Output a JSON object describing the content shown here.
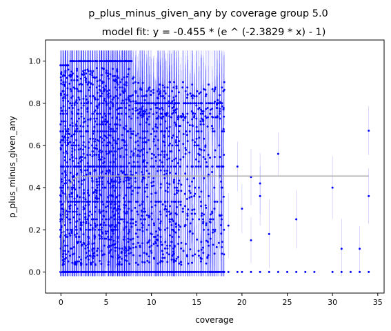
{
  "chart_data": {
    "type": "scatter",
    "title": "p_plus_minus_given_any by coverage group 5.0",
    "subtitle": "model fit: y = -0.455 * (e ^ (-2.3829 * x) - 1)",
    "xlabel": "coverage",
    "ylabel": "p_plus_minus_given_any",
    "xlim": [
      -1.7,
      35.7
    ],
    "ylim": [
      -0.1,
      1.1
    ],
    "x_ticks": [
      0,
      5,
      10,
      15,
      20,
      25,
      30,
      35
    ],
    "y_ticks": [
      0.0,
      0.2,
      0.4,
      0.6,
      0.8,
      1.0
    ],
    "x_tick_labels": [
      "0",
      "5",
      "10",
      "15",
      "20",
      "25",
      "30",
      "35"
    ],
    "y_tick_labels": [
      "0.0",
      "0.2",
      "0.4",
      "0.6",
      "0.8",
      "1.0"
    ],
    "grid": false,
    "legend": "none",
    "colors": {
      "points": "#0000ff",
      "error_bars": "#0000ff",
      "fit_line": "#a9a9a9"
    },
    "model_fit": {
      "a": -0.455,
      "b": -2.3829,
      "x_range": [
        0,
        34
      ]
    },
    "dense_region": {
      "x_range": [
        0,
        18
      ],
      "note": "thousands of points at fractional values k/n for coverage 0-18",
      "zero_row_x_range": [
        0,
        18
      ]
    },
    "sparse_points": [
      {
        "x": 18.5,
        "y": 0.22
      },
      {
        "x": 18.5,
        "y": 0.0
      },
      {
        "x": 19.5,
        "y": 0.5
      },
      {
        "x": 19.5,
        "y": 0.0
      },
      {
        "x": 20.0,
        "y": 0.3
      },
      {
        "x": 20.0,
        "y": 0.0
      },
      {
        "x": 21.0,
        "y": 0.45
      },
      {
        "x": 21.0,
        "y": 0.15
      },
      {
        "x": 21.0,
        "y": 0.0
      },
      {
        "x": 22.0,
        "y": 0.36
      },
      {
        "x": 22.0,
        "y": 0.42
      },
      {
        "x": 22.0,
        "y": 0.0
      },
      {
        "x": 23.0,
        "y": 0.18
      },
      {
        "x": 23.0,
        "y": 0.0
      },
      {
        "x": 24.0,
        "y": 0.56
      },
      {
        "x": 24.0,
        "y": 0.0
      },
      {
        "x": 25.0,
        "y": 0.0
      },
      {
        "x": 26.0,
        "y": 0.25
      },
      {
        "x": 26.0,
        "y": 0.0
      },
      {
        "x": 27.0,
        "y": 0.0
      },
      {
        "x": 28.0,
        "y": 0.0
      },
      {
        "x": 30.0,
        "y": 0.4
      },
      {
        "x": 30.0,
        "y": 0.0
      },
      {
        "x": 31.0,
        "y": 0.11
      },
      {
        "x": 31.0,
        "y": 0.0
      },
      {
        "x": 32.0,
        "y": 0.0
      },
      {
        "x": 33.0,
        "y": 0.11
      },
      {
        "x": 33.0,
        "y": 0.0
      },
      {
        "x": 34.0,
        "y": 0.67
      },
      {
        "x": 34.0,
        "y": 0.36
      },
      {
        "x": 34.0,
        "y": 0.0
      }
    ]
  }
}
